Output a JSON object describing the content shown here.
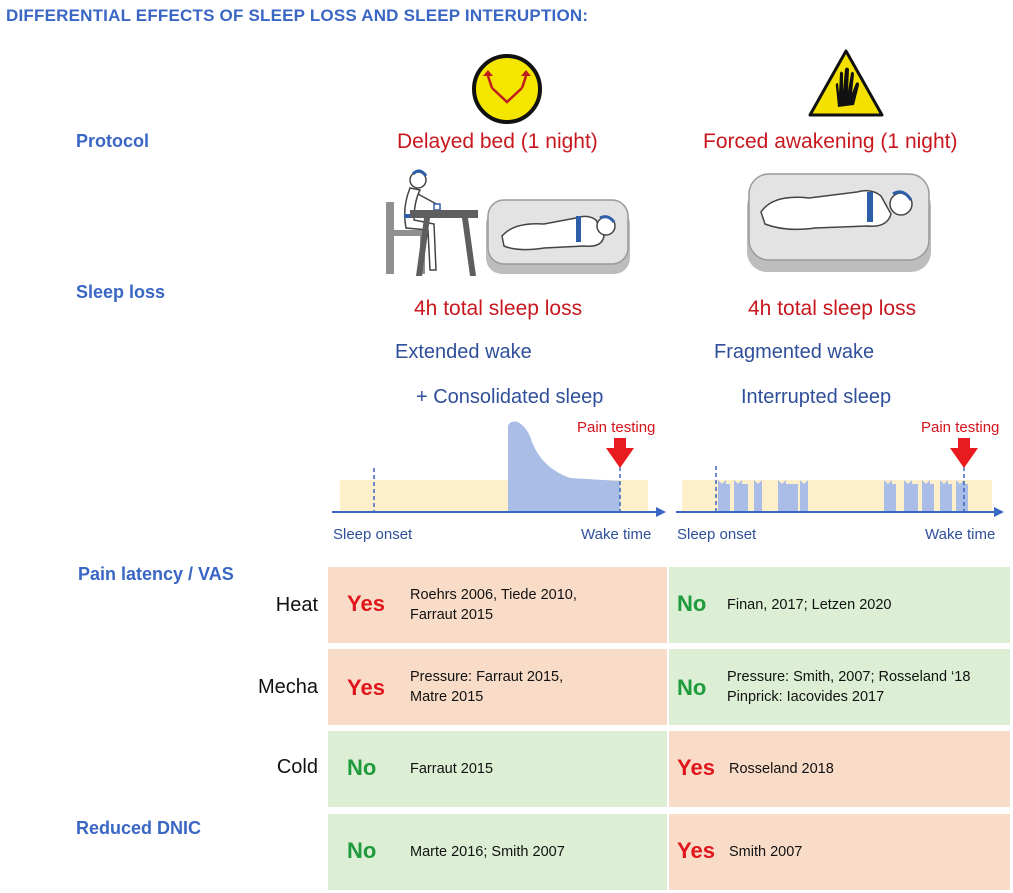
{
  "title": "DIFFERENTIAL EFFECTS OF SLEEP LOSS AND SLEEP INTERUPTION:",
  "labels": {
    "protocol": "Protocol",
    "sleep_loss": "Sleep loss",
    "pain_latency": "Pain latency / VAS",
    "reduced_dnic": "Reduced DNIC"
  },
  "left": {
    "icon": "yellow-face-arrows-icon",
    "protocol": "Delayed bed (1 night)",
    "sleep_loss": "4h total sleep loss",
    "wake_desc": "Extended wake",
    "sleep_desc": "+ Consolidated sleep",
    "pain_testing": "Pain testing",
    "axis_start": "Sleep onset",
    "axis_end": "Wake time"
  },
  "right": {
    "icon": "warning-hand-icon",
    "protocol": "Forced awakening (1 night)",
    "sleep_loss": "4h total sleep loss",
    "wake_desc": "Fragmented wake",
    "sleep_desc": "Interrupted sleep",
    "pain_testing": "Pain testing",
    "axis_start": "Sleep onset",
    "axis_end": "Wake time"
  },
  "rows": [
    {
      "label": "Heat",
      "left": {
        "answer": "Yes",
        "refs": [
          "Roehrs 2006, Tiede 2010,",
          "Farraut 2015"
        ]
      },
      "right": {
        "answer": "No",
        "refs": [
          "Finan, 2017; Letzen 2020"
        ]
      }
    },
    {
      "label": "Mecha",
      "left": {
        "answer": "Yes",
        "refs": [
          "Pressure: Farraut 2015,",
          "Matre 2015"
        ]
      },
      "right": {
        "answer": "No",
        "refs": [
          "Pressure: Smith, 2007; Rosseland ‘18",
          "Pinprick: Iacovides 2017"
        ]
      }
    },
    {
      "label": "Cold",
      "left": {
        "answer": "No",
        "refs": [
          "Farraut 2015"
        ]
      },
      "right": {
        "answer": "Yes",
        "refs": [
          "Rosseland 2018"
        ]
      }
    },
    {
      "label": "",
      "left": {
        "answer": "No",
        "refs": [
          "Marte 2016; Smith 2007"
        ]
      },
      "right": {
        "answer": "Yes",
        "refs": [
          "Smith 2007"
        ]
      }
    }
  ],
  "colors": {
    "title_blue": "#3a66c4",
    "red_text": "#c8181e",
    "yes_cell": "#f9dcc8",
    "no_cell": "#dcefd4",
    "yes_text": "#e0161c",
    "no_text": "#1f9a3c",
    "wake_band": "#fcefc9",
    "sleep_band": "#a9bde6"
  }
}
